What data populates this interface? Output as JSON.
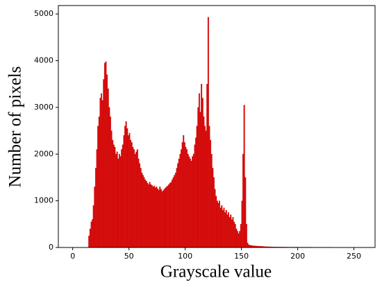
{
  "chart_data": {
    "type": "histogram",
    "x_label": "Grayscale value",
    "y_label": "Number of pixels",
    "color": "#d40b0b",
    "bins": [
      0,
      1,
      2,
      3,
      4,
      5,
      6,
      7,
      8,
      9,
      10,
      11,
      12,
      13,
      14,
      15,
      16,
      17,
      18,
      19,
      20,
      21,
      22,
      23,
      24,
      25,
      26,
      27,
      28,
      29,
      30,
      31,
      32,
      33,
      34,
      35,
      36,
      37,
      38,
      39,
      40,
      41,
      42,
      43,
      44,
      45,
      46,
      47,
      48,
      49,
      50,
      51,
      52,
      53,
      54,
      55,
      56,
      57,
      58,
      59,
      60,
      61,
      62,
      63,
      64,
      65,
      66,
      67,
      68,
      69,
      70,
      71,
      72,
      73,
      74,
      75,
      76,
      77,
      78,
      79,
      80,
      81,
      82,
      83,
      84,
      85,
      86,
      87,
      88,
      89,
      90,
      91,
      92,
      93,
      94,
      95,
      96,
      97,
      98,
      99,
      100,
      101,
      102,
      103,
      104,
      105,
      106,
      107,
      108,
      109,
      110,
      111,
      112,
      113,
      114,
      115,
      116,
      117,
      118,
      119,
      120,
      121,
      122,
      123,
      124,
      125,
      126,
      127,
      128,
      129,
      130,
      131,
      132,
      133,
      134,
      135,
      136,
      137,
      138,
      139,
      140,
      141,
      142,
      143,
      144,
      145,
      146,
      147,
      148,
      149,
      150,
      151,
      152,
      153,
      154,
      155,
      156,
      157,
      158,
      159,
      160,
      161,
      162,
      163,
      164,
      165,
      166,
      167,
      168,
      169,
      170,
      171,
      172,
      173,
      174,
      175,
      176,
      177,
      178,
      179,
      180,
      181,
      182,
      183,
      184,
      185,
      186,
      187,
      188,
      189,
      190,
      191,
      192,
      193,
      194,
      195,
      196,
      197,
      198,
      199,
      200,
      201,
      202,
      203,
      204,
      205,
      206,
      207,
      208,
      209,
      210,
      211,
      212,
      213,
      214,
      215,
      216,
      217,
      218,
      219,
      220,
      221,
      222,
      223,
      224,
      225,
      226,
      227,
      228,
      229,
      230,
      231,
      232,
      233,
      234,
      235,
      236,
      237,
      238,
      239,
      240,
      241,
      242,
      243,
      244,
      245,
      246,
      247,
      248,
      249,
      250,
      251,
      252,
      253,
      254,
      255,
      256
    ],
    "values": [
      0,
      0,
      0,
      0,
      0,
      0,
      0,
      0,
      0,
      0,
      0,
      0,
      0,
      0,
      250,
      400,
      550,
      600,
      900,
      1300,
      1700,
      2100,
      2600,
      2800,
      3200,
      3300,
      3150,
      3600,
      3950,
      3980,
      3700,
      3400,
      3000,
      2800,
      2500,
      2300,
      2200,
      2150,
      2000,
      2050,
      1900,
      2000,
      1950,
      2100,
      2200,
      2400,
      2600,
      2700,
      2550,
      2400,
      2450,
      2300,
      2250,
      2150,
      2100,
      2000,
      2050,
      2100,
      1900,
      1800,
      1700,
      1600,
      1550,
      1500,
      1450,
      1420,
      1380,
      1350,
      1400,
      1350,
      1330,
      1300,
      1320,
      1280,
      1300,
      1260,
      1230,
      1300,
      1250,
      1200,
      1220,
      1250,
      1280,
      1300,
      1320,
      1350,
      1380,
      1400,
      1450,
      1500,
      1550,
      1600,
      1700,
      1800,
      1900,
      2000,
      2100,
      2250,
      2400,
      2250,
      2150,
      2100,
      2000,
      1950,
      1900,
      1850,
      1950,
      2000,
      2200,
      2350,
      2600,
      3000,
      3300,
      2900,
      3500,
      3200,
      2800,
      2600,
      2500,
      3500,
      4930,
      2600,
      2300,
      2000,
      1700,
      1500,
      1250,
      1100,
      1000,
      950,
      1000,
      850,
      900,
      800,
      850,
      750,
      800,
      700,
      750,
      650,
      700,
      600,
      650,
      550,
      500,
      400,
      350,
      300,
      350,
      500,
      1000,
      2000,
      3050,
      1500,
      500,
      100,
      60,
      50,
      45,
      40,
      38,
      35,
      33,
      30,
      30,
      28,
      26,
      25,
      24,
      22,
      20,
      18,
      17,
      16,
      16,
      15,
      14,
      14,
      13,
      12,
      12,
      11,
      11,
      10,
      10,
      10,
      9,
      9,
      9,
      9,
      9,
      9,
      8,
      8,
      8,
      8,
      8,
      8,
      8,
      8,
      7,
      7,
      7,
      7,
      7,
      7,
      7,
      7,
      7,
      7,
      7,
      7,
      6,
      6,
      6,
      6,
      6,
      6,
      6,
      6,
      6,
      6,
      6,
      6,
      6,
      6,
      6,
      6,
      6,
      6,
      5,
      5,
      5,
      5,
      5,
      5,
      5,
      5,
      5,
      5,
      5,
      5,
      5,
      5,
      5,
      5,
      5,
      5,
      5,
      5,
      4,
      4,
      4,
      4,
      4,
      4
    ],
    "xlim": [
      -12.8,
      268.8
    ],
    "xticks": [
      0,
      50,
      100,
      150,
      200,
      250
    ],
    "ylim": [
      0,
      5180
    ],
    "yticks": [
      0,
      1000,
      2000,
      3000,
      4000,
      5000
    ]
  }
}
